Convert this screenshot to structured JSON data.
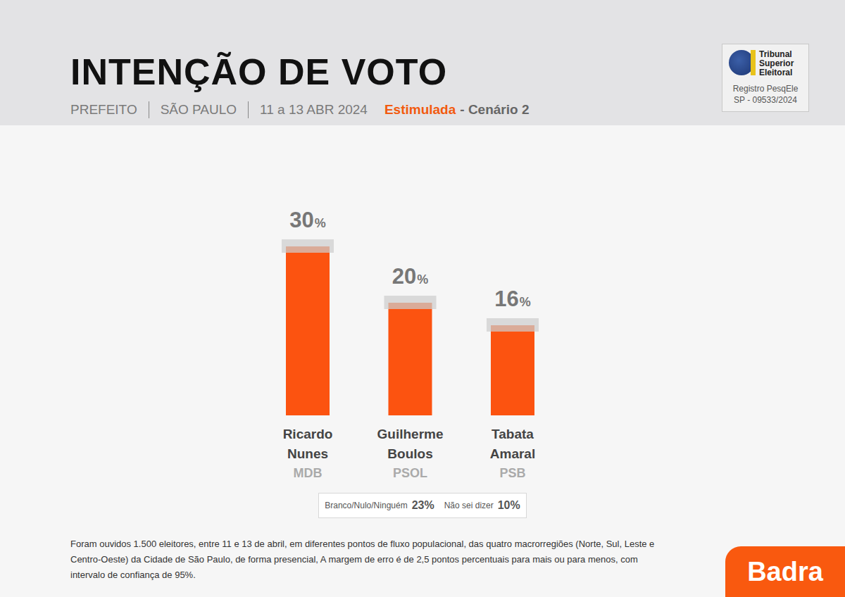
{
  "header": {
    "title": "INTENÇÃO DE VOTO",
    "subtitle_parts": [
      "PREFEITO",
      "SÃO PAULO",
      "11 a 13 ABR 2024"
    ],
    "highlight": "Estimulada",
    "scenario": "- Cenário 2"
  },
  "registry": {
    "names": [
      "Tribunal",
      "Superior",
      "Eleitoral"
    ],
    "lines": [
      "Registro PesqEle",
      "SP - 09533/2024"
    ]
  },
  "chart_data": {
    "type": "bar",
    "categories": [
      "Ricardo Nunes",
      "Guilherme Boulos",
      "Tabata Amaral"
    ],
    "parties": [
      "MDB",
      "PSOL",
      "PSB"
    ],
    "values": [
      30,
      20,
      16
    ],
    "value_labels": [
      "30%",
      "20%",
      "16%"
    ],
    "color": "#fc5310",
    "ylim": [
      0,
      40
    ],
    "grid": false,
    "data_labels": true,
    "tick_labels": "x"
  },
  "others": [
    {
      "label": "Branco/Nulo/Ninguém",
      "value": "23%"
    },
    {
      "label": "Não sei dizer",
      "value": "10%"
    }
  ],
  "note": "Foram ouvidos 1.500 eleitores, entre 11 e 13 de abril, em diferentes pontos de fluxo populacional, das quatro macrorregiões (Norte, Sul, Leste e Centro-Oeste) da Cidade de São Paulo, de forma presencial, A margem de erro é de 2,5 pontos percentuais para mais ou para menos, com intervalo de confiança de 95%.",
  "brand": "Badra"
}
